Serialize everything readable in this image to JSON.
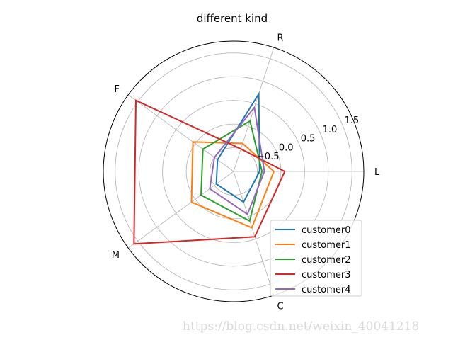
{
  "chart_data": {
    "type": "radar",
    "title": "different kind",
    "axes": [
      "L",
      "R",
      "F",
      "M",
      "C"
    ],
    "radial_ticks": [
      "−0.5",
      "0.0",
      "0.5",
      "1.0",
      "1.5"
    ],
    "radial_tick_values": [
      -0.5,
      0.0,
      0.5,
      1.0,
      1.5
    ],
    "rlim": [
      -1.0,
      1.75
    ],
    "grid": true,
    "legend_position": "lower-right",
    "series": [
      {
        "name": "customer0",
        "color": "#1f77b4",
        "values": [
          -0.45,
          0.72,
          -0.58,
          -0.55,
          -0.32
        ]
      },
      {
        "name": "customer1",
        "color": "#ff7f0e",
        "values": [
          -0.15,
          -0.38,
          0.06,
          0.1,
          0.25
        ]
      },
      {
        "name": "customer2",
        "color": "#2ca02c",
        "values": [
          -0.4,
          0.12,
          -0.2,
          -0.15,
          0.1
        ]
      },
      {
        "name": "customer3",
        "color": "#d62728",
        "values": [
          0.08,
          -0.5,
          1.55,
          1.6,
          0.45
        ]
      },
      {
        "name": "customer4",
        "color": "#9467bd",
        "values": [
          -0.35,
          0.42,
          -0.5,
          -0.38,
          -0.05
        ]
      }
    ]
  },
  "watermark": "https://blog.csdn.net/weixin_40041218"
}
